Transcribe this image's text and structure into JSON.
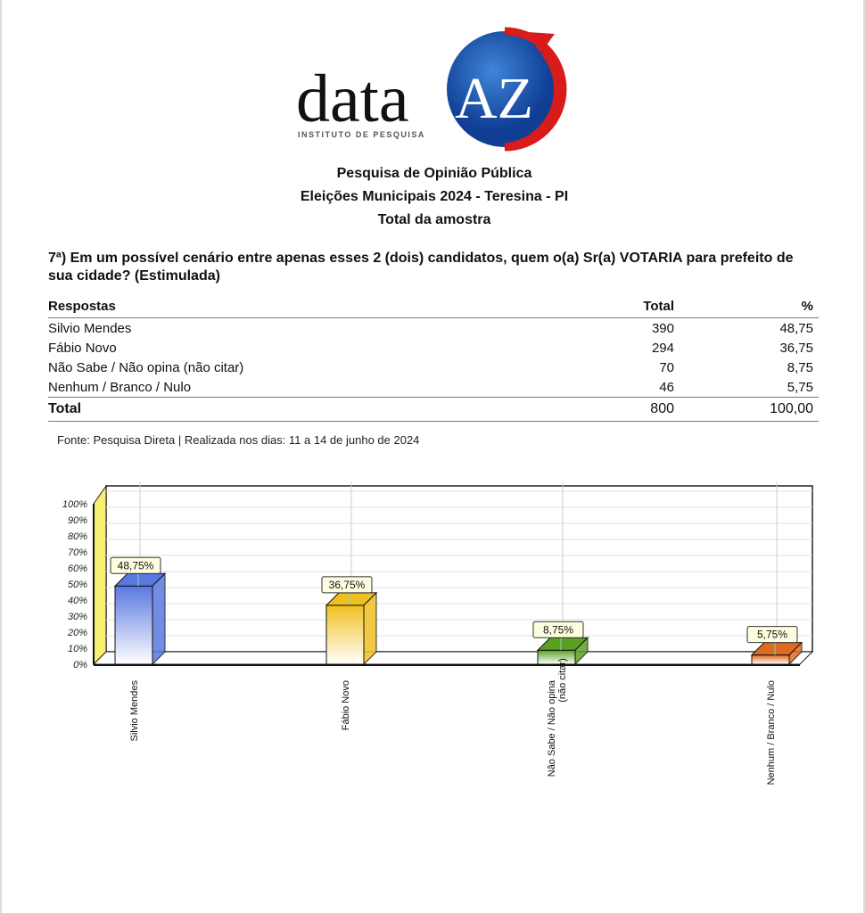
{
  "logo": {
    "word": "data",
    "mark": "AZ",
    "tagline": "INSTITUTO DE PESQUISA"
  },
  "header": {
    "line1": "Pesquisa de Opinião Pública",
    "line2": "Eleições Municipais 2024 - Teresina - PI",
    "line3": "Total da amostra"
  },
  "question": "7ª) Em um possível cenário entre apenas esses 2 (dois) candidatos, quem o(a) Sr(a) VOTARIA para prefeito de sua cidade?  (Estimulada)",
  "table": {
    "headers": [
      "Respostas",
      "Total",
      "%"
    ],
    "rows": [
      [
        "Silvio Mendes",
        "390",
        "48,75"
      ],
      [
        "Fábio Novo",
        "294",
        "36,75"
      ],
      [
        "Não Sabe / Não opina (não citar)",
        "70",
        "8,75"
      ],
      [
        "Nenhum / Branco / Nulo",
        "46",
        "5,75"
      ]
    ],
    "total": [
      "Total",
      "800",
      "100,00"
    ]
  },
  "source": "Fonte: Pesquisa Direta | Realizada nos dias: 11 a 14 de junho de 2024",
  "chart_data": {
    "type": "bar",
    "categories": [
      "Silvio Mendes",
      "Fábio Novo",
      "Não Sabe / Não opina (não citar)",
      "Nenhum / Branco / Nulo"
    ],
    "category_labels": [
      [
        "Silvio Mendes"
      ],
      [
        "Fábio Novo"
      ],
      [
        "Não Sabe / Não opina",
        "(não citar)"
      ],
      [
        "Nenhum / Branco / Nulo"
      ]
    ],
    "values": [
      48.75,
      36.75,
      8.75,
      5.75
    ],
    "data_labels": [
      "48,75%",
      "36,75%",
      "8,75%",
      "5,75%"
    ],
    "colors": [
      "#5a78e0",
      "#f0c020",
      "#5aa020",
      "#e06a20"
    ],
    "ylim": [
      0,
      100
    ],
    "yticks": [
      "0%",
      "10%",
      "20%",
      "30%",
      "40%",
      "50%",
      "60%",
      "70%",
      "80%",
      "90%",
      "100%"
    ],
    "grid": true,
    "style": "3d"
  }
}
